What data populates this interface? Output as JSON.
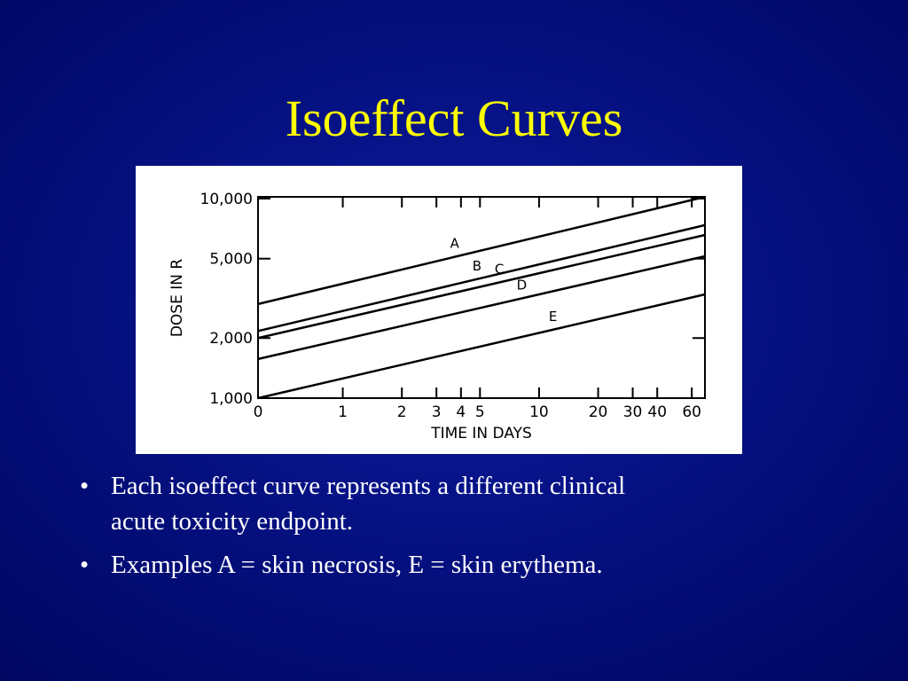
{
  "slide": {
    "title": "Isoeffect Curves",
    "bullets": [
      "Each isoeffect curve represents a different clinical",
      "acute toxicity endpoint.",
      "Examples A = skin necrosis, E = skin erythema."
    ]
  },
  "chart_data": {
    "type": "line",
    "xlabel": "TIME IN DAYS",
    "ylabel": "DOSE IN R",
    "x": [
      0.37,
      70
    ],
    "series": [
      {
        "name": "A",
        "color": "#000000",
        "values": [
          2960,
          10200
        ]
      },
      {
        "name": "B",
        "color": "#000000",
        "values": [
          2170,
          7360
        ]
      },
      {
        "name": "C",
        "color": "#000000",
        "values": [
          2000,
          6570
        ]
      },
      {
        "name": "D",
        "color": "#000000",
        "values": [
          1570,
          5140
        ]
      },
      {
        "name": "E",
        "color": "#000000",
        "values": [
          1000,
          3310
        ]
      }
    ],
    "xlim": [
      0.37,
      70
    ],
    "ylim": [
      1000,
      10200
    ],
    "xscale": "log",
    "yscale": "log",
    "xticks": [
      {
        "value": 0.37,
        "label": "0"
      },
      1,
      2,
      3,
      4,
      5,
      10,
      20,
      30,
      40,
      60
    ],
    "yticks": [
      {
        "value": 1000,
        "label": "1,000"
      },
      {
        "value": 2000,
        "label": "2,000"
      },
      {
        "value": 5000,
        "label": "5,000"
      },
      {
        "value": 10000,
        "label": "10,000"
      }
    ]
  }
}
